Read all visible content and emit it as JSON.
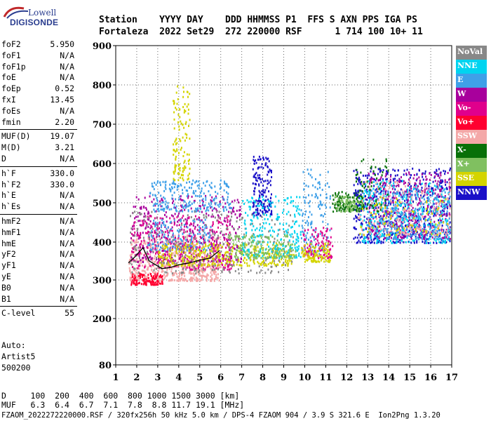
{
  "logo": {
    "line1": "Lowell",
    "line2": "DIGISONDE"
  },
  "header": {
    "line1": "Station    YYYY DAY    DDD HHMMSS P1  FFS S AXN PPS IGA PS",
    "line2": "Fortaleza  2022 Set29  272 220000 RSF      1 714 100 10+ 11"
  },
  "params": {
    "group1": [
      {
        "name": "foF2",
        "value": "5.950"
      },
      {
        "name": "foF1",
        "value": "N/A"
      },
      {
        "name": "foF1p",
        "value": "N/A"
      },
      {
        "name": "foE",
        "value": "N/A"
      },
      {
        "name": "foEp",
        "value": "0.52"
      },
      {
        "name": "fxI",
        "value": "13.45"
      },
      {
        "name": "foEs",
        "value": "N/A"
      },
      {
        "name": "fmin",
        "value": "2.20"
      }
    ],
    "group2": [
      {
        "name": "MUF(D)",
        "value": "19.07"
      },
      {
        "name": "M(D)",
        "value": "3.21"
      },
      {
        "name": "D",
        "value": "N/A"
      }
    ],
    "group3": [
      {
        "name": "h`F",
        "value": "330.0"
      },
      {
        "name": "h`F2",
        "value": "330.0"
      },
      {
        "name": "h`E",
        "value": "N/A"
      },
      {
        "name": "h`Es",
        "value": "N/A"
      }
    ],
    "group4": [
      {
        "name": "hmF2",
        "value": "N/A"
      },
      {
        "name": "hmF1",
        "value": "N/A"
      },
      {
        "name": "hmE",
        "value": "N/A"
      },
      {
        "name": "yF2",
        "value": "N/A"
      },
      {
        "name": "yF1",
        "value": "N/A"
      },
      {
        "name": "yE",
        "value": "N/A"
      },
      {
        "name": "B0",
        "value": "N/A"
      },
      {
        "name": "B1",
        "value": "N/A"
      }
    ],
    "group5": [
      {
        "name": "C-level",
        "value": "55"
      }
    ]
  },
  "auto": {
    "line1": "Auto:",
    "line2": "Artist5",
    "line3": "500200"
  },
  "legend": [
    {
      "label": "NoVal",
      "color": "#888888"
    },
    {
      "label": "NNE",
      "color": "#00d4f0"
    },
    {
      "label": "E",
      "color": "#3fa0e8"
    },
    {
      "label": "W",
      "color": "#a8009c"
    },
    {
      "label": "Vo-",
      "color": "#e0008c"
    },
    {
      "label": "Vo+",
      "color": "#ff0030"
    },
    {
      "label": "SSW",
      "color": "#f4a8a8"
    },
    {
      "label": "X-",
      "color": "#087008"
    },
    {
      "label": "X+",
      "color": "#80c060"
    },
    {
      "label": "SSE",
      "color": "#d4d400"
    },
    {
      "label": "NNW",
      "color": "#1a10c8"
    }
  ],
  "bottom": {
    "d_line": "D     100  200  400  600  800 1000 1500 3000 [km]",
    "muf_line": "MUF   6.3  6.4  6.7  7.1  7.8  8.8 11.7 19.1 [MHz]"
  },
  "footer": "FZAOM_2022272220000.RSF / 320fx256h 50 kHz 5.0 km / DPS-4 FZAOM 904 / 3.9 S 321.6 E  Ion2Png 1.3.20",
  "chart_data": {
    "type": "scatter",
    "x_ticks": [
      "1",
      "2",
      "3",
      "4",
      "5",
      "6",
      "7",
      "8",
      "9",
      "10",
      "11",
      "12",
      "13",
      "14",
      "15",
      "16",
      "17"
    ],
    "y_ticks": [
      "900",
      "800",
      "700",
      "600",
      "500",
      "400",
      "300",
      "200",
      "80"
    ],
    "xlim": [
      1,
      17
    ],
    "y_tick_values": [
      900,
      800,
      700,
      600,
      500,
      400,
      300,
      200,
      80
    ],
    "y_scale": "piecewise",
    "grid": true,
    "trace_series": {
      "x": [
        1.6,
        1.9,
        2.3,
        2.6,
        2.9,
        3.2,
        3.6,
        4.0,
        4.5,
        5.0,
        5.5,
        5.95
      ],
      "y": [
        345,
        360,
        385,
        350,
        340,
        330,
        333,
        340,
        345,
        352,
        358,
        378
      ]
    },
    "clusters": [
      {
        "label": "SSW",
        "xr": [
          1.6,
          6.0
        ],
        "yr": [
          300,
          420
        ],
        "n": 620
      },
      {
        "label": "Vo+",
        "xr": [
          1.7,
          3.2
        ],
        "yr": [
          290,
          320
        ],
        "n": 120
      },
      {
        "label": "W",
        "xr": [
          1.7,
          7.0
        ],
        "yr": [
          350,
          520
        ],
        "n": 420
      },
      {
        "label": "Vo-",
        "xr": [
          1.7,
          6.5
        ],
        "yr": [
          330,
          470
        ],
        "n": 320
      },
      {
        "label": "E",
        "xr": [
          2.6,
          6.5
        ],
        "yr": [
          480,
          560
        ],
        "n": 230
      },
      {
        "label": "E",
        "xr": [
          2.5,
          5.5
        ],
        "yr": [
          380,
          460
        ],
        "n": 150
      },
      {
        "label": "SSE",
        "xr": [
          3.7,
          4.5
        ],
        "yr": [
          560,
          800
        ],
        "n": 120
      },
      {
        "label": "SSE",
        "xr": [
          3.0,
          9.5
        ],
        "yr": [
          340,
          400
        ],
        "n": 380
      },
      {
        "label": "NoVal",
        "xr": [
          1.6,
          9.5
        ],
        "yr": [
          320,
          480
        ],
        "n": 260
      },
      {
        "label": "NNW",
        "xr": [
          7.5,
          8.4
        ],
        "yr": [
          470,
          620
        ],
        "n": 160
      },
      {
        "label": "NNE",
        "xr": [
          7.0,
          9.8
        ],
        "yr": [
          360,
          520
        ],
        "n": 240
      },
      {
        "label": "X+",
        "xr": [
          6.3,
          9.6
        ],
        "yr": [
          360,
          420
        ],
        "n": 160
      },
      {
        "label": "E",
        "xr": [
          9.8,
          11.2
        ],
        "yr": [
          370,
          590
        ],
        "n": 140
      },
      {
        "label": "Vo-",
        "xr": [
          9.9,
          11.3
        ],
        "yr": [
          360,
          440
        ],
        "n": 110
      },
      {
        "label": "SSE",
        "xr": [
          9.8,
          11.2
        ],
        "yr": [
          350,
          400
        ],
        "n": 100
      },
      {
        "label": "X-",
        "xr": [
          11.3,
          12.8
        ],
        "yr": [
          480,
          530
        ],
        "n": 130
      },
      {
        "label": "X+",
        "xr": [
          11.4,
          12.8
        ],
        "yr": [
          480,
          520
        ],
        "n": 70
      },
      {
        "label": "NNW",
        "xr": [
          12.3,
          17
        ],
        "yr": [
          400,
          590
        ],
        "n": 620
      },
      {
        "label": "W",
        "xr": [
          13.0,
          17
        ],
        "yr": [
          410,
          580
        ],
        "n": 420
      },
      {
        "label": "NNE",
        "xr": [
          12.6,
          17
        ],
        "yr": [
          400,
          560
        ],
        "n": 360
      },
      {
        "label": "E",
        "xr": [
          13.0,
          17
        ],
        "yr": [
          410,
          540
        ],
        "n": 260
      },
      {
        "label": "SSW",
        "xr": [
          12.5,
          17
        ],
        "yr": [
          420,
          560
        ],
        "n": 200
      },
      {
        "label": "X-",
        "xr": [
          12.4,
          14.0
        ],
        "yr": [
          480,
          620
        ],
        "n": 60
      },
      {
        "label": "SSE",
        "xr": [
          12.6,
          17
        ],
        "yr": [
          420,
          520
        ],
        "n": 80
      }
    ]
  }
}
